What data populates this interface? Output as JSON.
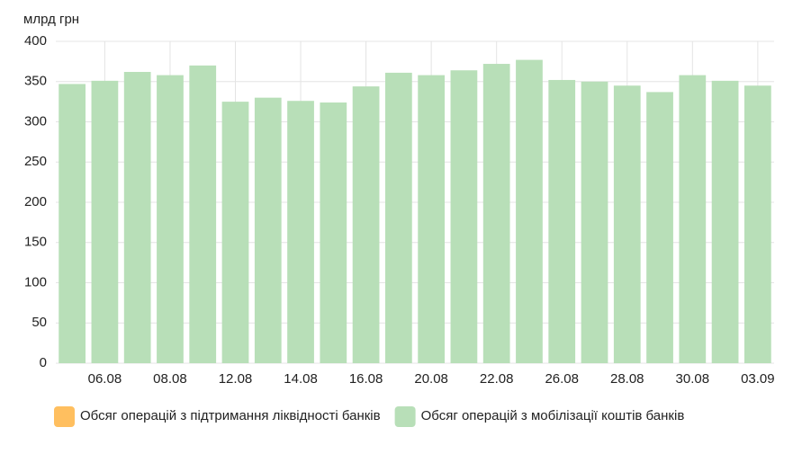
{
  "chart_data": {
    "type": "bar",
    "y_label": "млрд грн",
    "categories": [
      null,
      "06.08",
      null,
      "08.08",
      null,
      "12.08",
      null,
      "14.08",
      null,
      "16.08",
      null,
      "20.08",
      null,
      "22.08",
      null,
      "26.08",
      null,
      "28.08",
      null,
      "30.08",
      null,
      "03.09"
    ],
    "series": [
      {
        "name": "Обсяг операцій з підтримання ліквідності банків",
        "color": "#ffbf5f",
        "values": [
          null,
          null,
          null,
          null,
          null,
          null,
          null,
          null,
          null,
          null,
          null,
          null,
          null,
          null,
          null,
          null,
          null,
          null,
          null,
          null,
          null,
          null
        ]
      },
      {
        "name": "Обсяг операцій з мобілізації коштів банків",
        "color": "#b8dfb8",
        "values": [
          347,
          351,
          362,
          358,
          370,
          325,
          330,
          326,
          324,
          344,
          361,
          358,
          364,
          372,
          377,
          352,
          350,
          345,
          337,
          358,
          351,
          345
        ]
      }
    ],
    "ylim": [
      0,
      400
    ],
    "yticks": [
      0,
      50,
      100,
      150,
      200,
      250,
      300,
      350,
      400
    ],
    "grid": true
  }
}
